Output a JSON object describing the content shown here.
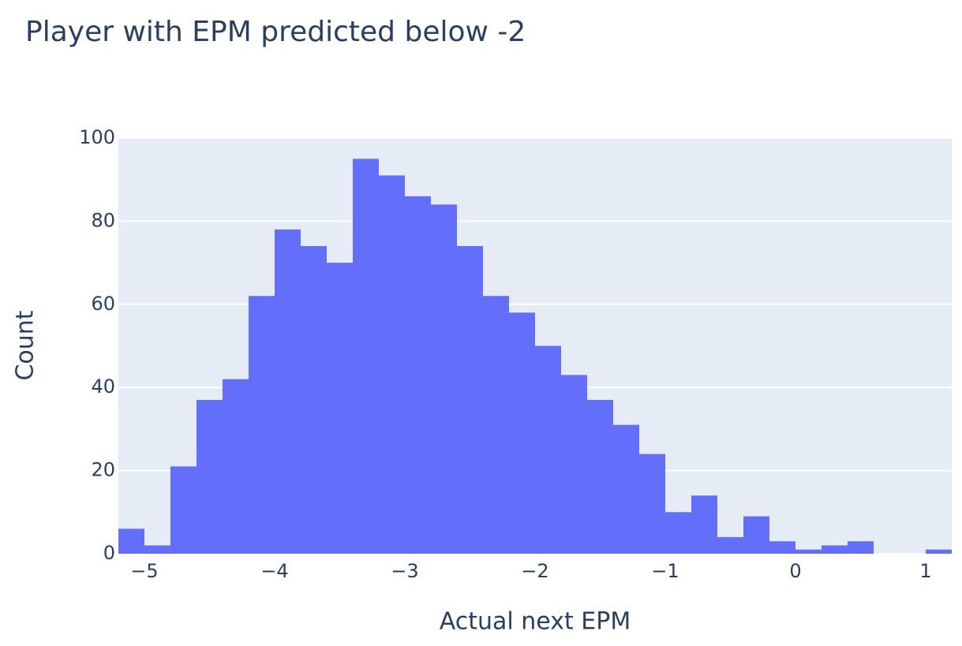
{
  "chart_data": {
    "type": "histogram",
    "title": "Player with EPM predicted below -2",
    "x_label": "Actual next EPM",
    "y_label": "Count",
    "bins": [
      -5.2,
      -5.0,
      -4.8,
      -4.6,
      -4.4,
      -4.2,
      -4.0,
      -3.8,
      -3.6,
      -3.4,
      -3.2,
      -3.0,
      -2.8,
      -2.6,
      -2.4,
      -2.2,
      -2.0,
      -1.8,
      -1.6,
      -1.4,
      -1.2,
      -1.0,
      -0.8,
      -0.6,
      -0.4,
      -0.2,
      0,
      0.2,
      0.4,
      0.6,
      0.8,
      1.0,
      1.2
    ],
    "values": [
      6,
      2,
      21,
      37,
      42,
      62,
      78,
      74,
      70,
      95,
      91,
      86,
      84,
      74,
      62,
      58,
      50,
      43,
      37,
      31,
      24,
      10,
      14,
      4,
      9,
      3,
      1,
      2,
      3,
      0,
      0,
      1
    ],
    "color": "#636efa",
    "xlim": [
      -5.2,
      1.2
    ],
    "xticks": [
      {
        "value": -5,
        "label": "−5"
      },
      {
        "value": -4,
        "label": "−4"
      },
      {
        "value": -3,
        "label": "−3"
      },
      {
        "value": -2,
        "label": "−2"
      },
      {
        "value": -1,
        "label": "−1"
      },
      0,
      1
    ],
    "ylim": [
      0,
      100
    ],
    "yticks": [
      0,
      20,
      40,
      60,
      80,
      100
    ],
    "grid": true
  }
}
